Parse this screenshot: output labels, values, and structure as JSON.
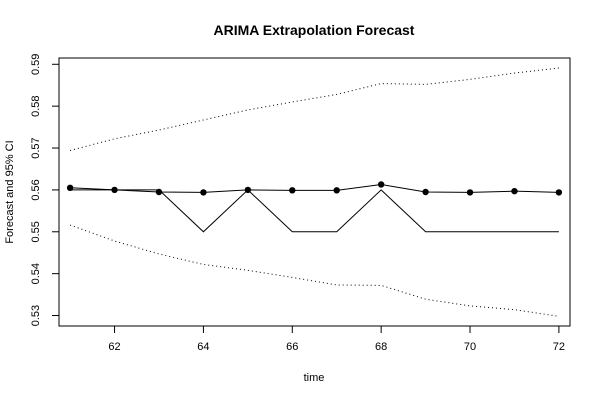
{
  "chart_data": {
    "type": "line",
    "title": "ARIMA Extrapolation Forecast",
    "xlabel": "time",
    "ylabel": "Forecast and 95% CI",
    "xlim": [
      60.75,
      72.25
    ],
    "ylim": [
      0.5275,
      0.5915
    ],
    "x_ticks": [
      "62",
      "64",
      "66",
      "68",
      "70",
      "72"
    ],
    "y_ticks": [
      "0.53",
      "0.54",
      "0.55",
      "0.56",
      "0.57",
      "0.58",
      "0.59"
    ],
    "x": [
      61,
      62,
      63,
      64,
      65,
      66,
      67,
      68,
      69,
      70,
      71,
      72
    ],
    "series": [
      {
        "role": "actual",
        "style": "solid-line",
        "values": [
          0.56,
          0.56,
          0.56,
          0.55,
          0.56,
          0.55,
          0.55,
          0.56,
          0.55,
          0.55,
          0.55,
          0.55
        ]
      },
      {
        "role": "forecast",
        "style": "line-with-points",
        "values": [
          0.5605,
          0.56,
          0.5595,
          0.5594,
          0.56,
          0.5599,
          0.5599,
          0.5613,
          0.5595,
          0.5594,
          0.5597,
          0.5594
        ]
      },
      {
        "role": "upper-ci",
        "style": "dotted",
        "values": [
          0.5694,
          0.5722,
          0.5743,
          0.5767,
          0.5791,
          0.581,
          0.5828,
          0.5854,
          0.5852,
          0.5864,
          0.5879,
          0.5891
        ]
      },
      {
        "role": "lower-ci",
        "style": "dotted",
        "values": [
          0.5516,
          0.5478,
          0.5447,
          0.5422,
          0.5408,
          0.5391,
          0.5373,
          0.5372,
          0.5339,
          0.5323,
          0.5314,
          0.5298
        ]
      }
    ],
    "grid": false,
    "colors": {
      "line": "#000000",
      "background": "#ffffff"
    }
  }
}
